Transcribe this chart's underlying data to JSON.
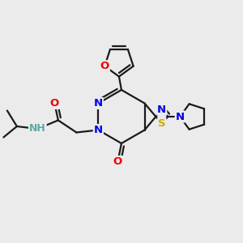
{
  "bg_color": "#ebebeb",
  "atom_colors": {
    "C": "#000000",
    "N": "#0000ee",
    "O": "#ee0000",
    "S": "#ccaa00",
    "H": "#5fa8a8"
  },
  "bond_color": "#1a1a1a",
  "bond_lw": 1.6
}
